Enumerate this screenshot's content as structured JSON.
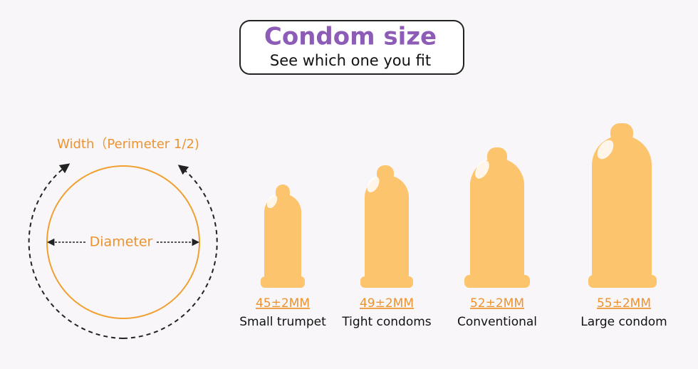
{
  "header": {
    "title": "Condom size",
    "subtitle": "See which one you fit"
  },
  "diagram": {
    "width_label": "Width（Perimeter 1/2)",
    "diameter_label": "Diameter"
  },
  "items": [
    {
      "size": "45±2MM",
      "name": "Small trumpet"
    },
    {
      "size": "49±2MM",
      "name": "Tight condoms"
    },
    {
      "size": "52±2MM",
      "name": "Conventional"
    },
    {
      "size": "55±2MM",
      "name": "Large condom"
    }
  ]
}
